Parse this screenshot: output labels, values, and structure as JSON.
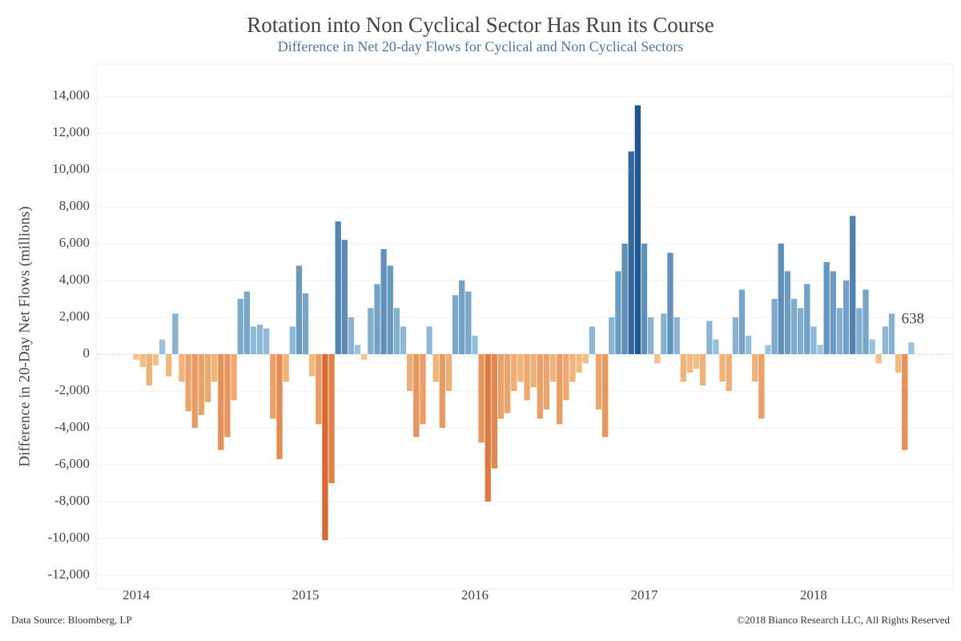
{
  "chart_data": {
    "type": "bar",
    "title": "Rotation into Non Cyclical Sector Has Run its Course",
    "subtitle": "Difference in Net 20-day Flows for Cyclical and Non Cyclical Sectors",
    "y_label": "Difference in 20-Day Net Flows (millions)",
    "source": "Data Source: Bloomberg, LP",
    "copyright": "©2018 Bianco Research LLC, All Rights Reserved",
    "annotation": "638",
    "categories": [
      "2014",
      null,
      null,
      null,
      null,
      null,
      null,
      null,
      null,
      null,
      null,
      null,
      null,
      null,
      null,
      null,
      null,
      null,
      null,
      null,
      null,
      null,
      null,
      null,
      null,
      null,
      "2015",
      null,
      null,
      null,
      null,
      null,
      null,
      null,
      null,
      null,
      null,
      null,
      null,
      null,
      null,
      null,
      null,
      null,
      null,
      null,
      null,
      null,
      null,
      null,
      null,
      null,
      "2016",
      null,
      null,
      null,
      null,
      null,
      null,
      null,
      null,
      null,
      null,
      null,
      null,
      null,
      null,
      null,
      null,
      null,
      null,
      null,
      null,
      null,
      null,
      null,
      null,
      null,
      "2017",
      null,
      null,
      null,
      null,
      null,
      null,
      null,
      null,
      null,
      null,
      null,
      null,
      null,
      null,
      null,
      null,
      null,
      null,
      null,
      null,
      null,
      null,
      null,
      null,
      null,
      "2018",
      null,
      null,
      null,
      null,
      null,
      null,
      null,
      null,
      null,
      null,
      null,
      null,
      null,
      null,
      null
    ],
    "values": [
      -300,
      -700,
      -1700,
      -600,
      800,
      -1200,
      2200,
      -1500,
      -3100,
      -4000,
      -3300,
      -2600,
      -1500,
      -5200,
      -4500,
      -2500,
      3000,
      3400,
      1500,
      1600,
      1400,
      -3500,
      -5700,
      -1500,
      1500,
      4800,
      3300,
      -1200,
      -3800,
      -10100,
      -7000,
      7200,
      6200,
      2000,
      500,
      -300,
      2500,
      3800,
      5700,
      4800,
      2500,
      1500,
      -2000,
      -4500,
      -3800,
      1500,
      -1500,
      -4000,
      -2000,
      3200,
      4000,
      3400,
      1000,
      -4800,
      -8000,
      -6200,
      -3500,
      -3200,
      -2000,
      -1500,
      -2500,
      -1800,
      -3500,
      -3000,
      -1500,
      -3800,
      -2500,
      -1500,
      -1000,
      -500,
      1500,
      -3000,
      -4500,
      2000,
      4500,
      6000,
      11000,
      13500,
      6000,
      2000,
      -500,
      2200,
      5500,
      2000,
      -1500,
      -1000,
      -800,
      -1700,
      1800,
      800,
      -1500,
      -2000,
      2000,
      3500,
      1000,
      -1500,
      -3500,
      500,
      3000,
      6000,
      4500,
      3000,
      2500,
      3800,
      1500,
      500,
      5000,
      4500,
      2500,
      4000,
      7500,
      2500,
      3500,
      800,
      -500,
      1500,
      2200,
      -1000,
      -5200,
      638
    ],
    "positive_colors": [
      "#a6cde6",
      "#1d5690"
    ],
    "negative_colors": [
      "#f8c88d",
      "#d4501a"
    ],
    "ylim": [
      -12000,
      14000
    ],
    "yticks": [
      {
        "value": -12000,
        "label": "-12,000"
      },
      {
        "value": -10000,
        "label": "-10,000"
      },
      {
        "value": -8000,
        "label": "-8,000"
      },
      {
        "value": -6000,
        "label": "-6,000"
      },
      {
        "value": -4000,
        "label": "-4,000"
      },
      {
        "value": -2000,
        "label": "-2,000"
      },
      0,
      {
        "value": 2000,
        "label": "2,000"
      },
      {
        "value": 4000,
        "label": "4,000"
      },
      {
        "value": 6000,
        "label": "6,000"
      },
      {
        "value": 8000,
        "label": "8,000"
      },
      {
        "value": 10000,
        "label": "10,000"
      },
      {
        "value": 12000,
        "label": "12,000"
      },
      {
        "value": 14000,
        "label": "14,000"
      }
    ],
    "grid": true
  }
}
